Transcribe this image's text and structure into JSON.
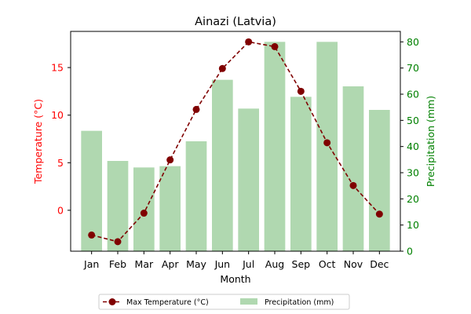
{
  "chart_data": {
    "type": "bar+line",
    "title": "Ainazi (Latvia)",
    "xlabel": "Month",
    "categories": [
      "Jan",
      "Feb",
      "Mar",
      "Apr",
      "May",
      "Jun",
      "Jul",
      "Aug",
      "Sep",
      "Oct",
      "Nov",
      "Dec"
    ],
    "left_axis": {
      "label": "Temperature (°C)",
      "color": "#ff0000",
      "lim": [
        -4.3,
        18.8
      ],
      "ticks": [
        0,
        5,
        10,
        15
      ]
    },
    "right_axis": {
      "label": "Precipitation (mm)",
      "color": "#008000",
      "lim": [
        0,
        84
      ],
      "ticks": [
        0,
        10,
        20,
        30,
        40,
        50,
        60,
        70,
        80
      ]
    },
    "series": [
      {
        "name": "Max Temperature (°C)",
        "type": "line",
        "axis": "left",
        "color": "#800000",
        "values": [
          -2.6,
          -3.3,
          -0.3,
          5.3,
          10.6,
          14.9,
          17.7,
          17.2,
          12.5,
          7.1,
          2.6,
          -0.4
        ]
      },
      {
        "name": "Precipitation (mm)",
        "type": "bar",
        "axis": "right",
        "color": "#b0d8b0",
        "values": [
          46,
          34.5,
          32,
          32.5,
          42,
          65.5,
          54.5,
          80,
          59,
          80,
          63,
          54
        ]
      }
    ],
    "legend": "bottom-center"
  }
}
